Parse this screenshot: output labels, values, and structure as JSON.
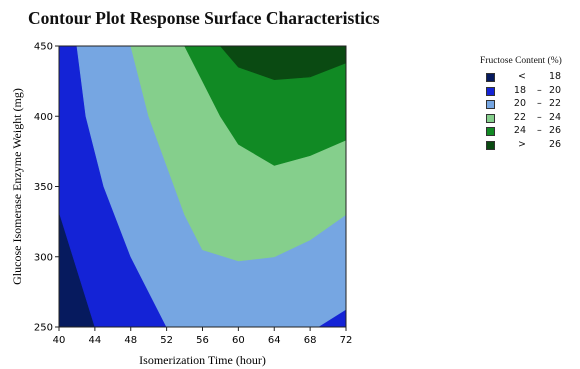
{
  "chart_data": {
    "type": "contour",
    "title": "Contour Plot Response Surface Characteristics",
    "xlabel": "Isomerization Time (hour)",
    "ylabel": "Glucose Isomerase Enzyme Weight (mg)",
    "xlim": [
      40,
      72
    ],
    "ylim": [
      250,
      450
    ],
    "x_ticks": [
      40,
      44,
      48,
      52,
      56,
      60,
      64,
      68,
      72
    ],
    "y_ticks": [
      250,
      300,
      350,
      400,
      450
    ],
    "legend_title": "Fructose Content (%)",
    "legend_position": "right",
    "levels": [
      {
        "lo": "<",
        "dash": "",
        "hi": "18",
        "color": "#061a5e"
      },
      {
        "lo": "18",
        "dash": "–",
        "hi": "20",
        "color": "#1423d6"
      },
      {
        "lo": "20",
        "dash": "–",
        "hi": "22",
        "color": "#76a6e2"
      },
      {
        "lo": "22",
        "dash": "–",
        "hi": "24",
        "color": "#85cf8c"
      },
      {
        "lo": "24",
        "dash": "–",
        "hi": "26",
        "color": "#118a24"
      },
      {
        "lo": ">",
        "dash": "",
        "hi": "26",
        "color": "#0a4a12"
      }
    ],
    "regions": [
      {
        "level": 0,
        "points": [
          [
            40,
            250
          ],
          [
            44,
            250
          ],
          [
            40,
            332
          ]
        ]
      },
      {
        "level": 1,
        "points": [
          [
            44,
            250
          ],
          [
            52,
            250
          ],
          [
            48,
            300
          ],
          [
            45,
            350
          ],
          [
            43,
            400
          ],
          [
            42,
            450
          ],
          [
            40,
            450
          ],
          [
            40,
            332
          ]
        ]
      },
      {
        "level": 2,
        "points": [
          [
            52,
            250
          ],
          [
            69,
            250
          ],
          [
            72,
            262
          ],
          [
            72,
            330
          ],
          [
            68,
            312
          ],
          [
            64,
            300
          ],
          [
            60,
            297
          ],
          [
            56,
            305
          ],
          [
            54,
            330
          ],
          [
            52,
            365
          ],
          [
            50,
            400
          ],
          [
            48,
            450
          ],
          [
            42,
            450
          ],
          [
            43,
            400
          ],
          [
            45,
            350
          ],
          [
            48,
            300
          ]
        ]
      },
      {
        "level": 3,
        "points": [
          [
            48,
            450
          ],
          [
            50,
            400
          ],
          [
            52,
            365
          ],
          [
            54,
            330
          ],
          [
            56,
            305
          ],
          [
            60,
            297
          ],
          [
            64,
            300
          ],
          [
            68,
            312
          ],
          [
            72,
            330
          ],
          [
            72,
            383
          ],
          [
            68,
            372
          ],
          [
            64,
            365
          ],
          [
            60,
            380
          ],
          [
            58,
            400
          ],
          [
            56,
            425
          ],
          [
            54,
            450
          ]
        ]
      },
      {
        "level": 4,
        "points": [
          [
            54,
            450
          ],
          [
            56,
            425
          ],
          [
            58,
            400
          ],
          [
            60,
            380
          ],
          [
            64,
            365
          ],
          [
            68,
            372
          ],
          [
            72,
            383
          ],
          [
            72,
            438
          ],
          [
            68,
            428
          ],
          [
            64,
            426
          ],
          [
            60,
            435
          ],
          [
            58,
            450
          ]
        ]
      },
      {
        "level": 5,
        "points": [
          [
            58,
            450
          ],
          [
            60,
            435
          ],
          [
            64,
            426
          ],
          [
            68,
            428
          ],
          [
            72,
            438
          ],
          [
            72,
            450
          ]
        ]
      },
      {
        "level": 1,
        "points": [
          [
            69,
            250
          ],
          [
            72,
            250
          ],
          [
            72,
            262
          ]
        ]
      }
    ]
  }
}
